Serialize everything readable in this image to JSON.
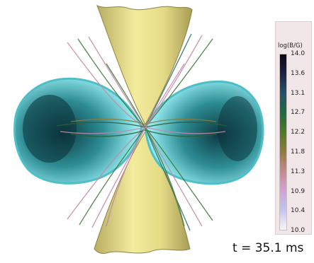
{
  "colorbar": {
    "title": "log(B/G)",
    "ticks": [
      "14.0",
      "13.6",
      "13.1",
      "12.7",
      "12.2",
      "11.8",
      "11.3",
      "10.9",
      "10.4",
      "10.0"
    ]
  },
  "time_label": "t = 35.1 ms"
}
